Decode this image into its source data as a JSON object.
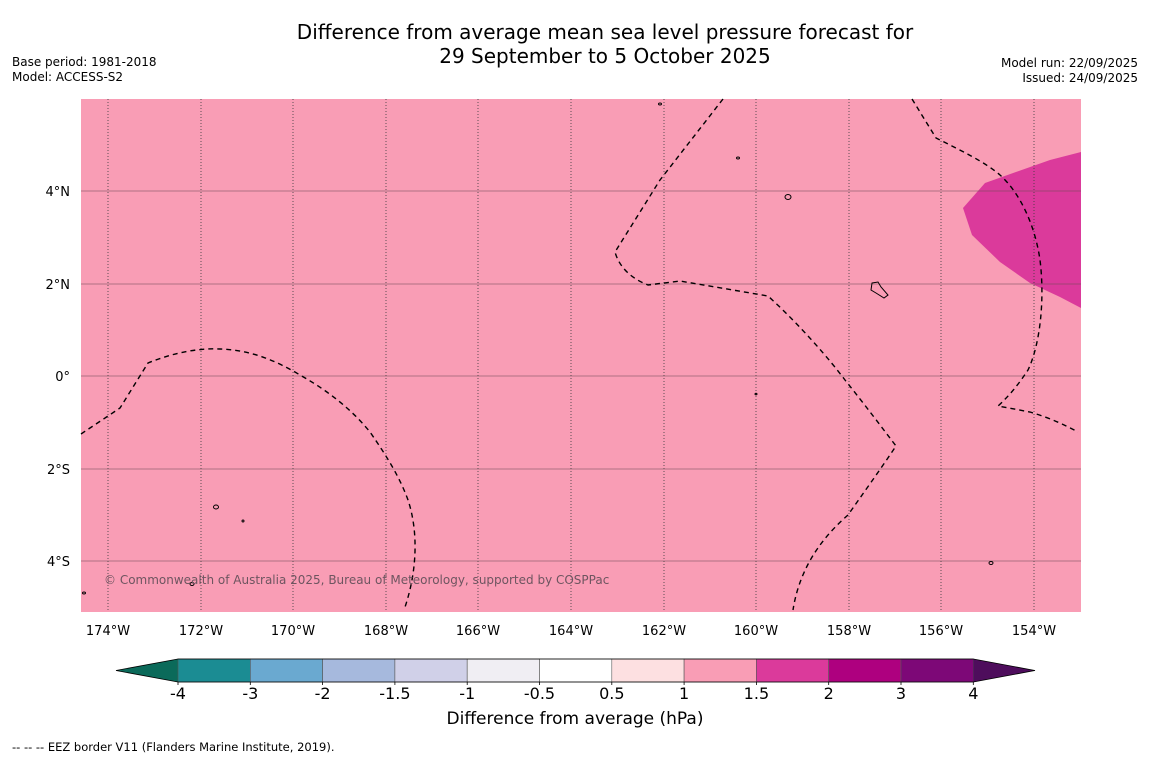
{
  "title": {
    "line1": "Difference from average mean sea level pressure forecast for",
    "line2": "29 September to 5 October 2025"
  },
  "meta_left": {
    "base_period": "Base period: 1981-2018",
    "model": "Model: ACCESS-S2"
  },
  "meta_right": {
    "model_run": "Model run: 22/09/2025",
    "issued": "Issued: 24/09/2025"
  },
  "axes": {
    "lon_labels": [
      "174°W",
      "172°W",
      "170°W",
      "168°W",
      "166°W",
      "164°W",
      "162°W",
      "160°W",
      "158°W",
      "156°W",
      "154°W"
    ],
    "lat_labels": [
      "4°N",
      "2°N",
      "0°",
      "2°S",
      "4°S"
    ]
  },
  "copyright": "© Commonwealth of Australia 2025, Bureau of Meteorology, supported by COSPPac",
  "colorbar": {
    "label": "Difference from average (hPa)",
    "ticks": [
      "-4",
      "-3",
      "-2",
      "-1.5",
      "-1",
      "-0.5",
      "0.5",
      "1",
      "1.5",
      "2",
      "3",
      "4"
    ],
    "colors": [
      "#1b8c93",
      "#6aa9d0",
      "#a6b9dd",
      "#d0d0e8",
      "#f0eef3",
      "#ffffff",
      "#fde0e1",
      "#f99db5",
      "#db3a9b",
      "#ae007f",
      "#7d0877"
    ],
    "under_color": "#0b6a5a",
    "over_color": "#4e0d5c"
  },
  "map_colors": {
    "background_anomaly": "#f99db5",
    "high_anomaly": "#db3a9b"
  },
  "footnote": "-- -- -- EEZ border V11 (Flanders Marine Institute, 2019)."
}
